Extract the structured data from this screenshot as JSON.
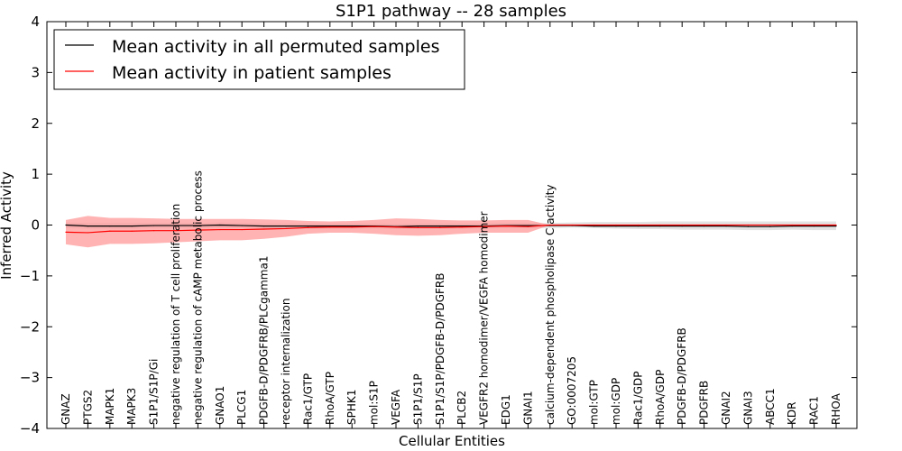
{
  "chart_data": {
    "type": "line",
    "title": "S1P1 pathway -- 28 samples",
    "xlabel": "Cellular Entities",
    "ylabel": "Inferred Activity",
    "ylim": [
      -4,
      4
    ],
    "yticks": [
      "−4",
      "−3",
      "−2",
      "−1",
      "0",
      "1",
      "2",
      "3",
      "4"
    ],
    "legend_position": "top-left",
    "categories": [
      "GNAZ",
      "PTGS2",
      "MAPK1",
      "MAPK3",
      "S1P1/S1P/Gi",
      "negative regulation of T cell proliferation",
      "negative regulation of cAMP metabolic process",
      "GNAO1",
      "PLCG1",
      "PDGFB-D/PDGFRB/PLCgamma1",
      "receptor internalization",
      "Rac1/GTP",
      "RhoA/GTP",
      "SPHK1",
      "mol:S1P",
      "VEGFA",
      "S1P1/S1P",
      "S1P1/S1P/PDGFB-D/PDGFRB",
      "PLCB2",
      "VEGFR2 homodimer/VEGFA homodimer",
      "EDG1",
      "GNAI1",
      "calcium-dependent phospholipase C activity",
      "GO:0007205",
      "mol:GTP",
      "mol:GDP",
      "Rac1/GDP",
      "RhoA/GDP",
      "PDGFB-D/PDGFRB",
      "PDGFRB",
      "GNAI2",
      "GNAI3",
      "ABCC1",
      "KDR",
      "RAC1",
      "RHOA"
    ],
    "series": [
      {
        "name": "Mean activity in all permuted samples",
        "color": "#000000",
        "band_color": "#cccccc",
        "values": [
          0,
          -0.02,
          -0.02,
          -0.02,
          -0.01,
          -0.01,
          -0.01,
          0,
          -0.01,
          -0.02,
          -0.02,
          -0.02,
          -0.02,
          -0.02,
          -0.02,
          -0.03,
          -0.02,
          -0.02,
          -0.02,
          -0.02,
          -0.01,
          -0.01,
          -0.01,
          -0.01,
          -0.02,
          -0.02,
          -0.02,
          -0.02,
          -0.02,
          -0.02,
          -0.02,
          -0.03,
          -0.03,
          -0.02,
          -0.02,
          -0.02
        ],
        "lower": [
          -0.06,
          -0.07,
          -0.07,
          -0.07,
          -0.06,
          -0.06,
          -0.06,
          -0.05,
          -0.06,
          -0.07,
          -0.07,
          -0.07,
          -0.07,
          -0.07,
          -0.07,
          -0.08,
          -0.07,
          -0.07,
          -0.07,
          -0.07,
          -0.06,
          -0.06,
          -0.06,
          -0.05,
          -0.06,
          -0.07,
          -0.08,
          -0.08,
          -0.09,
          -0.09,
          -0.09,
          -0.1,
          -0.1,
          -0.09,
          -0.1,
          -0.1
        ],
        "upper": [
          0.05,
          0.04,
          0.04,
          0.04,
          0.04,
          0.04,
          0.04,
          0.05,
          0.04,
          0.03,
          0.03,
          0.03,
          0.03,
          0.03,
          0.03,
          0.02,
          0.03,
          0.03,
          0.03,
          0.03,
          0.04,
          0.04,
          0.04,
          0.05,
          0.06,
          0.06,
          0.06,
          0.07,
          0.07,
          0.07,
          0.07,
          0.07,
          0.07,
          0.07,
          0.07,
          0.07
        ]
      },
      {
        "name": "Mean activity in patient samples",
        "color": "#ff0000",
        "band_color": "#ff9999",
        "values": [
          -0.14,
          -0.15,
          -0.12,
          -0.12,
          -0.11,
          -0.11,
          -0.1,
          -0.09,
          -0.09,
          -0.08,
          -0.07,
          -0.05,
          -0.04,
          -0.04,
          -0.03,
          -0.04,
          -0.05,
          -0.05,
          -0.04,
          -0.03,
          -0.02,
          -0.03,
          0,
          0,
          0,
          0,
          0,
          0,
          0,
          0,
          0,
          0,
          0,
          0,
          0,
          0
        ],
        "lower": [
          -0.38,
          -0.44,
          -0.37,
          -0.37,
          -0.36,
          -0.34,
          -0.32,
          -0.3,
          -0.3,
          -0.27,
          -0.23,
          -0.17,
          -0.15,
          -0.15,
          -0.17,
          -0.2,
          -0.21,
          -0.2,
          -0.17,
          -0.15,
          -0.15,
          -0.15,
          0,
          0,
          0,
          0,
          0,
          0,
          0,
          0,
          0,
          0,
          0,
          0,
          0,
          0
        ],
        "upper": [
          0.1,
          0.18,
          0.14,
          0.14,
          0.13,
          0.12,
          0.12,
          0.12,
          0.12,
          0.11,
          0.1,
          0.08,
          0.07,
          0.08,
          0.1,
          0.13,
          0.12,
          0.1,
          0.09,
          0.09,
          0.1,
          0.1,
          0,
          0,
          0,
          0,
          0,
          0,
          0,
          0,
          0,
          0,
          0,
          0,
          0,
          0
        ]
      }
    ]
  }
}
